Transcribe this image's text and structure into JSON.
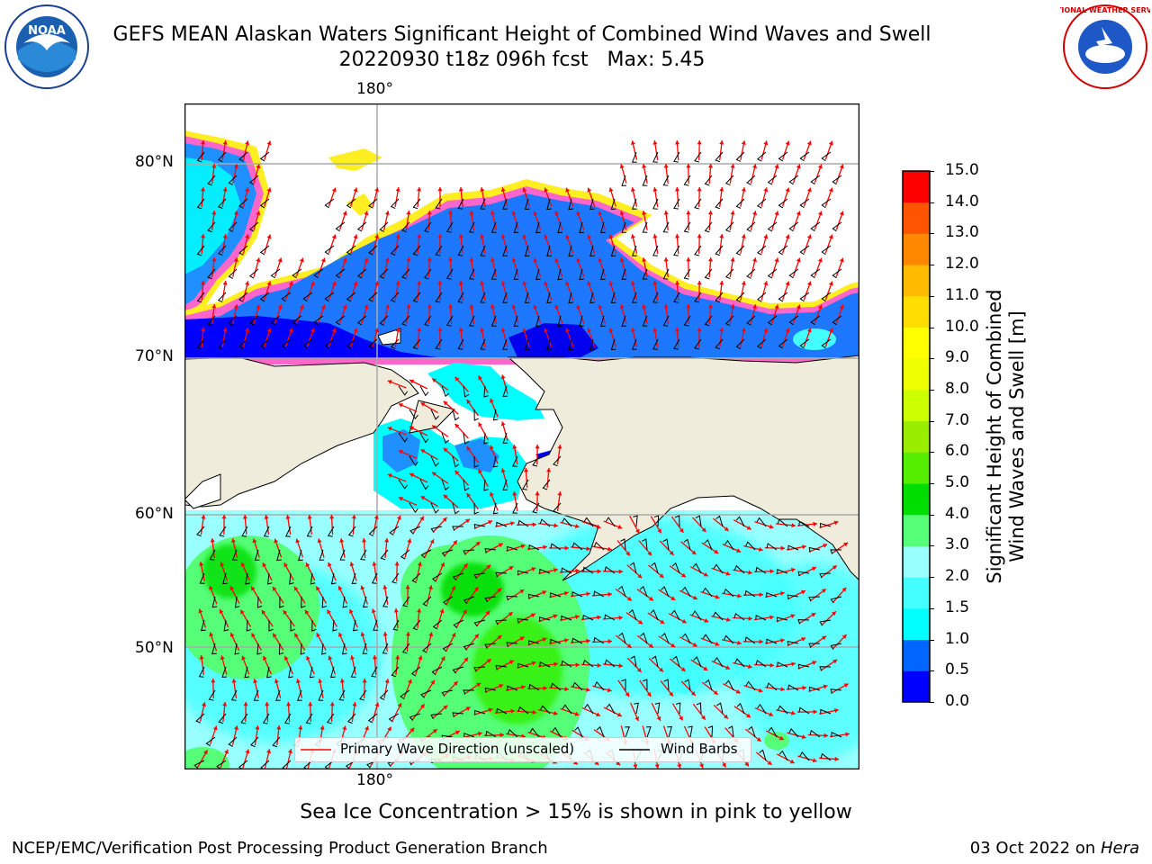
{
  "header": {
    "title": "GEFS MEAN Alaskan Waters Significant Height of Combined Wind Waves and Swell",
    "subtitle": "20220930 t18z 096h fcst   Max: 5.45"
  },
  "logos": {
    "left": "NOAA",
    "right": "NATIONAL WEATHER SERVICE"
  },
  "map": {
    "longitude_labels": [
      "180°",
      "180°"
    ],
    "latitude_labels": [
      "80°N",
      "70°N",
      "60°N",
      "50°N"
    ]
  },
  "legend": {
    "wave_label": "Primary Wave Direction (unscaled)",
    "barb_label": "Wind Barbs",
    "wave_color": "#ff0000",
    "barb_color": "#000000"
  },
  "colorbar": {
    "label_line1": "Significant Height of Combined",
    "label_line2": "Wind Waves and Swell [m]",
    "ticks": [
      "15.0",
      "14.0",
      "13.0",
      "12.0",
      "11.0",
      "10.0",
      "9.0",
      "8.0",
      "7.0",
      "6.0",
      "5.0",
      "4.0",
      "3.0",
      "2.0",
      "1.5",
      "1.0",
      "0.5",
      "0.0"
    ],
    "colors_bottom_to_top": [
      "#0000ff",
      "#0066ff",
      "#00ffff",
      "#44ffff",
      "#99ffff",
      "#55ff77",
      "#00dd00",
      "#55ee00",
      "#99ee00",
      "#ccff00",
      "#eeff00",
      "#ffff00",
      "#ffdd00",
      "#ffbb00",
      "#ff8800",
      "#ff5500",
      "#ff0000"
    ]
  },
  "caption": "Sea Ice Concentration > 15% is shown in pink to yellow",
  "footer": {
    "left": "NCEP/EMC/Verification Post Processing Product Generation Branch",
    "right_date": "03 Oct 2022 on ",
    "right_host": "Hera"
  }
}
